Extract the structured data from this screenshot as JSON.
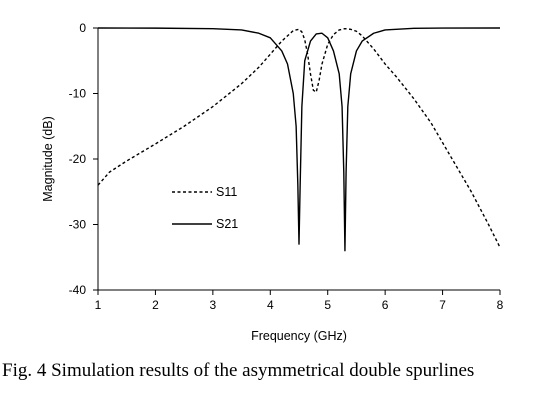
{
  "caption": "Fig. 4 Simulation results of the asymmetrical double spurlines",
  "chart_data": {
    "type": "line",
    "title": "",
    "xlabel": "Frequency (GHz)",
    "ylabel": "Magnitude (dB)",
    "xlim": [
      1,
      8
    ],
    "ylim": [
      -40,
      0
    ],
    "xticks": [
      1,
      2,
      3,
      4,
      5,
      6,
      7,
      8
    ],
    "yticks": [
      0,
      -10,
      -20,
      -30,
      -40
    ],
    "grid": false,
    "legend_position": "center-left",
    "series": [
      {
        "name": "S11",
        "style": "dashed",
        "color": "#000000",
        "x": [
          1.0,
          1.2,
          1.5,
          2.0,
          2.5,
          3.0,
          3.5,
          3.8,
          4.0,
          4.2,
          4.3,
          4.4,
          4.5,
          4.55,
          4.6,
          4.65,
          4.7,
          4.75,
          4.8,
          4.85,
          4.9,
          5.0,
          5.1,
          5.2,
          5.3,
          5.4,
          5.5,
          5.6,
          5.7,
          5.8,
          6.0,
          6.2,
          6.5,
          6.8,
          7.0,
          7.2,
          7.5,
          7.8,
          8.0
        ],
        "y": [
          -24.0,
          -22.0,
          -20.3,
          -17.7,
          -15.0,
          -12.0,
          -8.5,
          -6.0,
          -4.0,
          -2.0,
          -1.2,
          -0.4,
          -0.2,
          -0.6,
          -1.8,
          -4.0,
          -7.0,
          -9.5,
          -9.8,
          -8.0,
          -5.5,
          -2.5,
          -1.0,
          -0.3,
          -0.1,
          -0.2,
          -0.5,
          -1.2,
          -2.2,
          -3.2,
          -5.5,
          -7.5,
          -10.8,
          -14.5,
          -17.5,
          -20.5,
          -25.0,
          -30.0,
          -33.5
        ]
      },
      {
        "name": "S21",
        "style": "solid",
        "color": "#000000",
        "x": [
          1.0,
          2.0,
          3.0,
          3.5,
          3.8,
          4.0,
          4.2,
          4.3,
          4.4,
          4.45,
          4.48,
          4.5,
          4.52,
          4.55,
          4.6,
          4.7,
          4.8,
          4.9,
          5.0,
          5.1,
          5.2,
          5.25,
          5.28,
          5.3,
          5.32,
          5.35,
          5.4,
          5.5,
          5.6,
          5.8,
          6.0,
          6.5,
          7.0,
          8.0
        ],
        "y": [
          0.0,
          -0.02,
          -0.1,
          -0.3,
          -0.8,
          -1.5,
          -3.5,
          -5.5,
          -10.0,
          -15.0,
          -24.0,
          -33.0,
          -24.0,
          -12.0,
          -5.0,
          -2.0,
          -0.9,
          -0.8,
          -1.5,
          -3.5,
          -7.0,
          -12.0,
          -22.0,
          -34.0,
          -22.0,
          -12.0,
          -7.0,
          -3.5,
          -2.0,
          -0.8,
          -0.3,
          -0.05,
          -0.01,
          0.0
        ]
      }
    ]
  }
}
